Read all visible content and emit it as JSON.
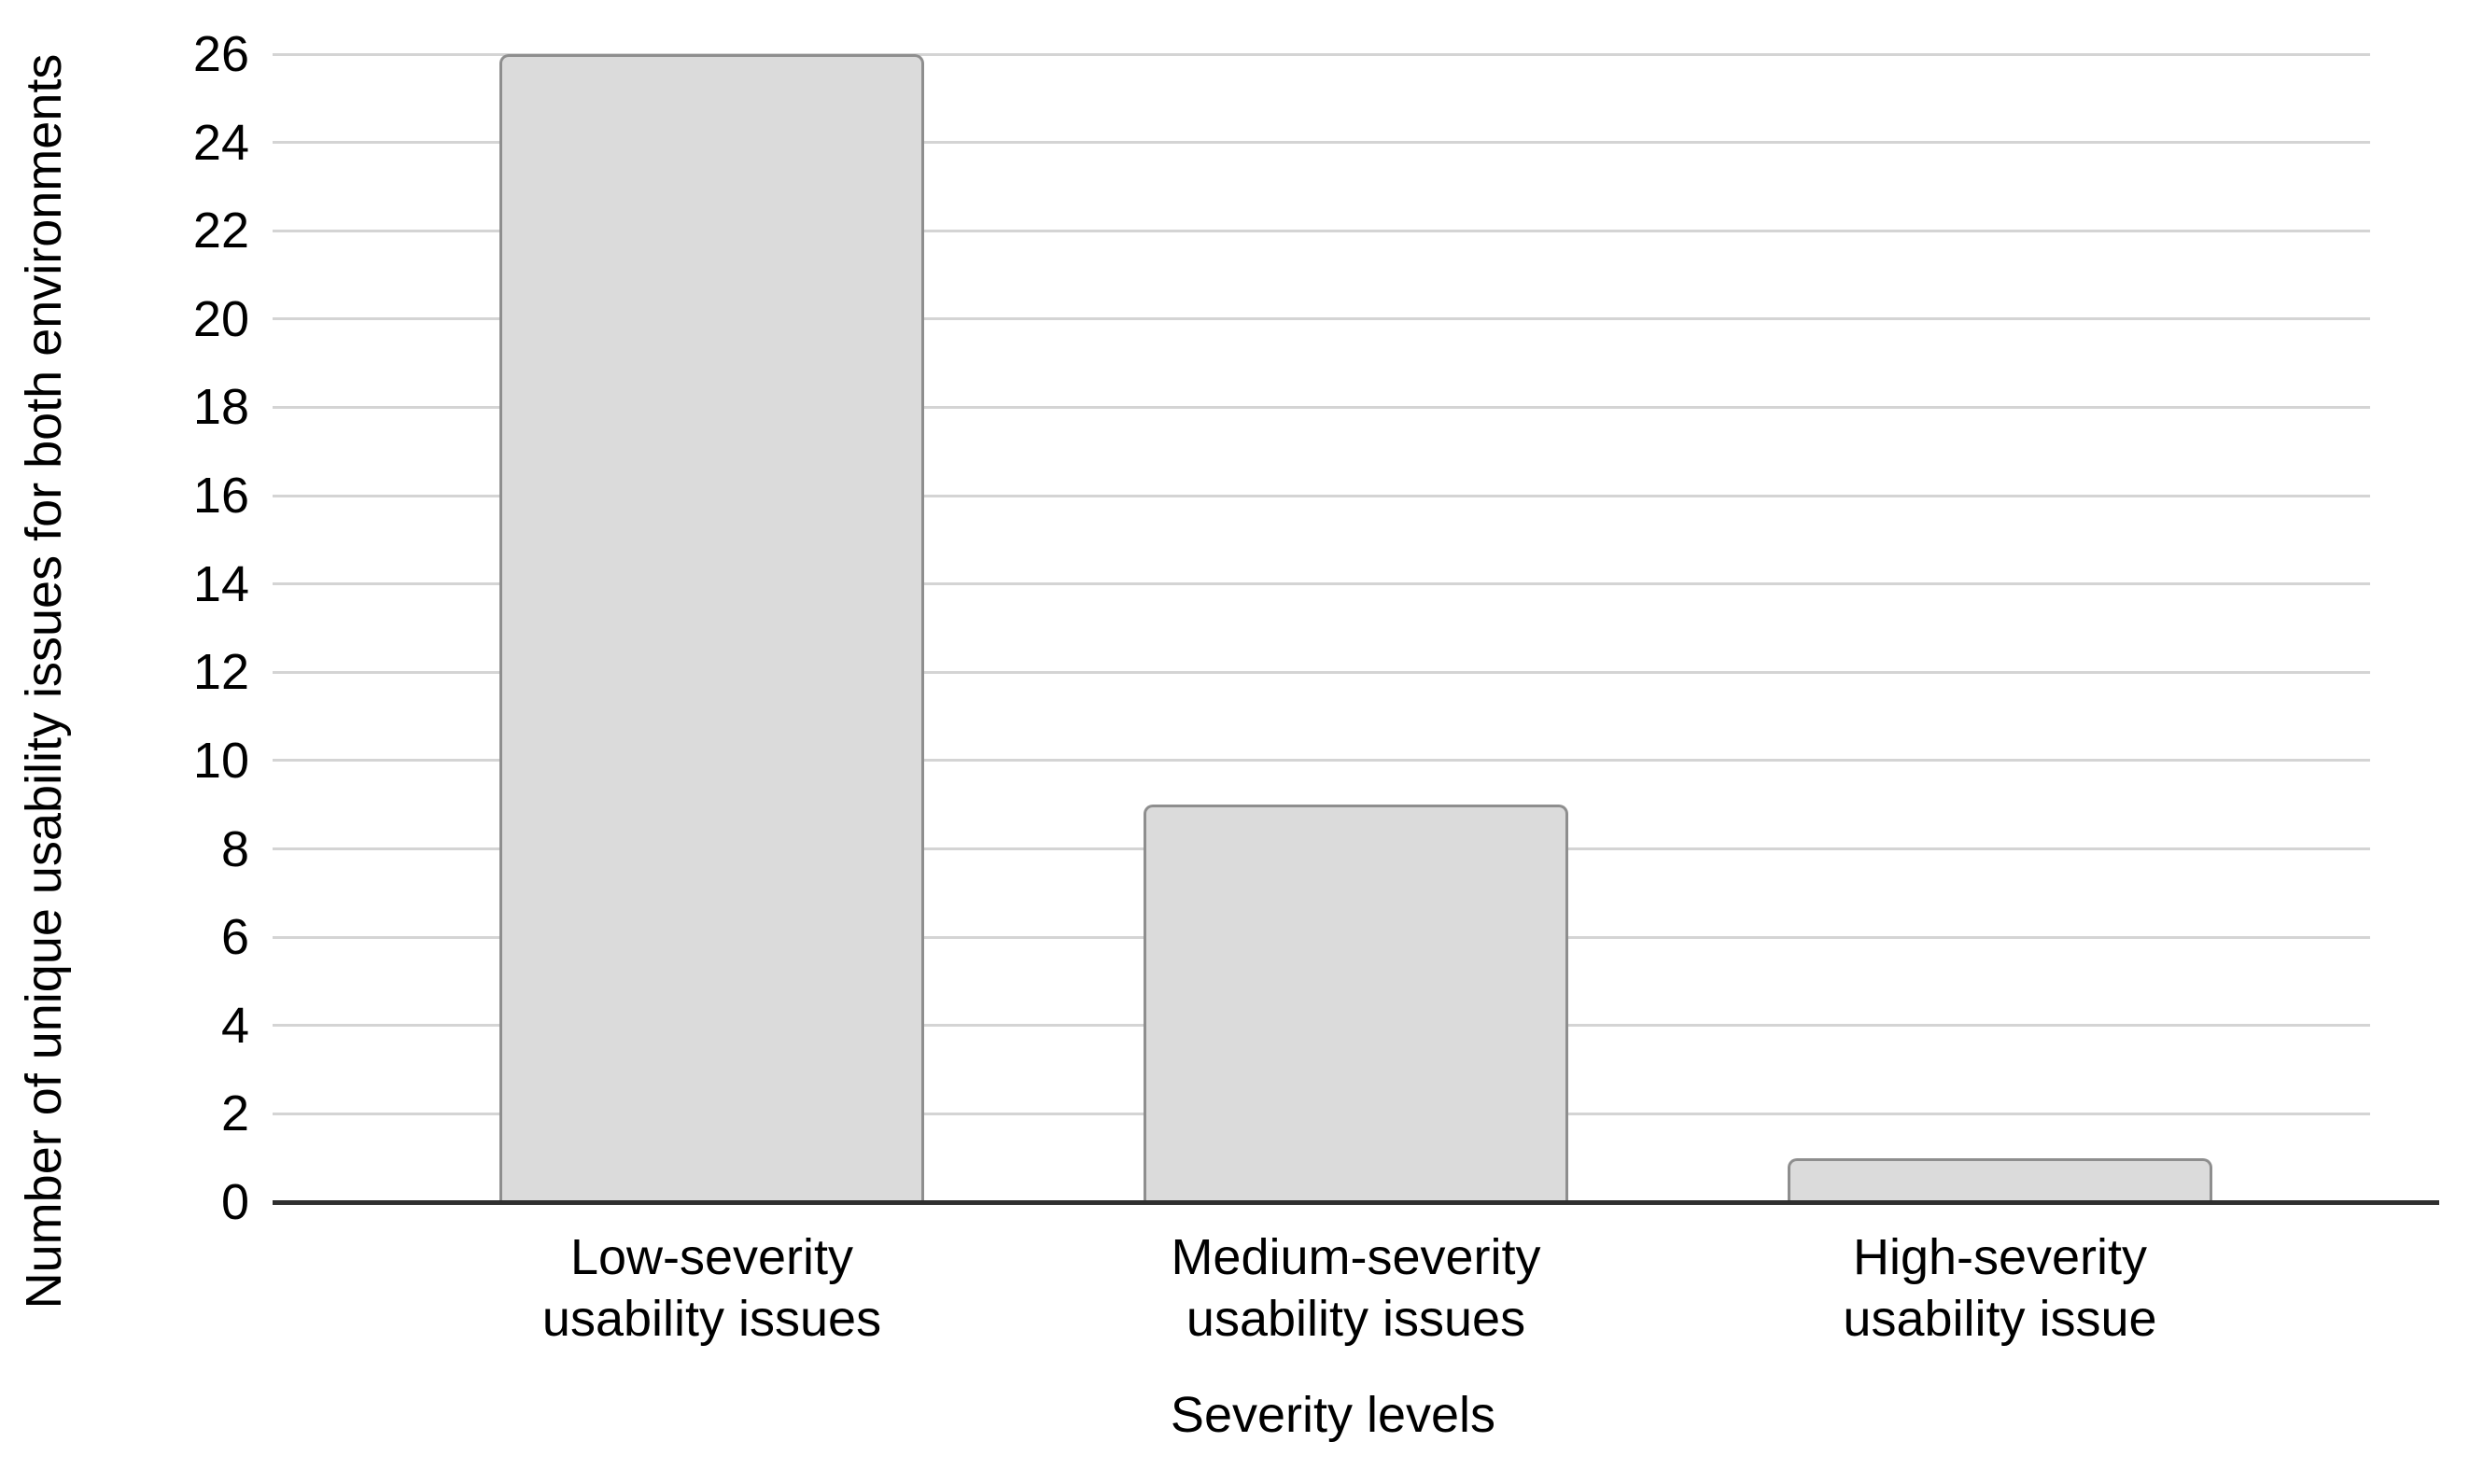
{
  "chart_data": {
    "type": "bar",
    "title": "",
    "xlabel": "Severity levels",
    "ylabel": "Number of unique usability issues for both environments",
    "categories": [
      "Low-severity\nusability issues",
      "Medium-severity\nusability issues",
      "High-severity\nusability issue"
    ],
    "values": [
      26,
      9,
      1
    ],
    "ylim": [
      0,
      26
    ],
    "yticks": [
      0,
      2,
      4,
      6,
      8,
      10,
      12,
      14,
      16,
      18,
      20,
      22,
      24,
      26
    ],
    "grid": "horizontal-only",
    "legend": "none",
    "colors": {
      "bar_fill": "#dbdbdb",
      "bar_border": "#8e8e8e",
      "gridline": "#d4d4d4",
      "axis_line": "#2f2f2f",
      "text": "#000000",
      "background": "#ffffff"
    }
  }
}
